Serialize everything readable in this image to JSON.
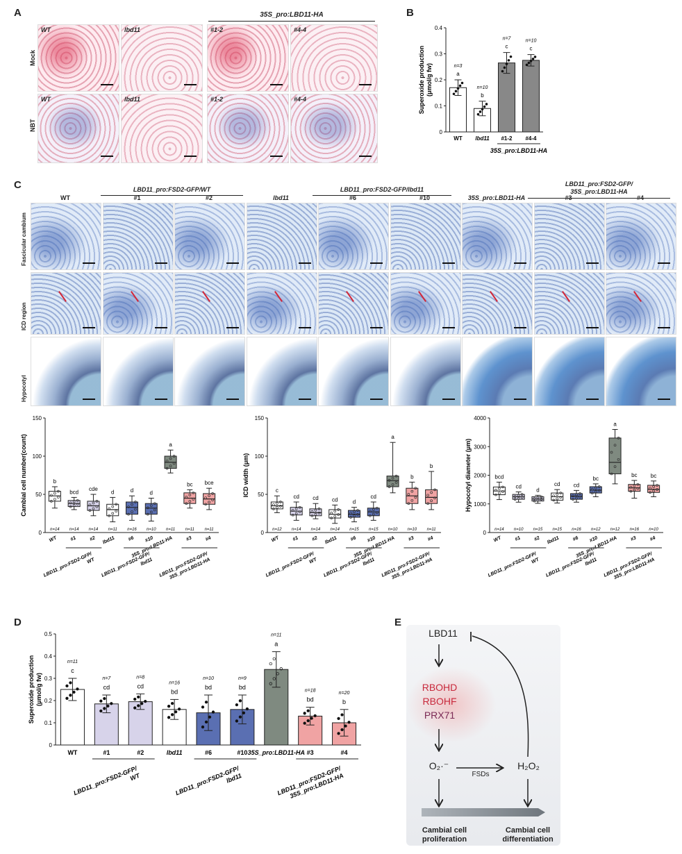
{
  "panel_letters": {
    "A": "A",
    "B": "B",
    "C": "C",
    "D": "D",
    "E": "E"
  },
  "panelA": {
    "group_header": "35S_pro:LBD11-HA",
    "row_labels": [
      "Mock",
      "NBT"
    ],
    "columns": [
      "WT",
      "lbd11",
      "#1-2",
      "#4-4"
    ]
  },
  "panelB": {
    "ylabel": "Superoxide production\n(μmol/g fw)",
    "group_label": "35S_pro:LBD11-HA"
  },
  "panelC": {
    "col_labels": [
      "WT",
      "#1",
      "#2",
      "lbd11",
      "#6",
      "#10",
      "35S_pro:LBD11-HA",
      "#3",
      "#4"
    ],
    "group_headers": [
      "LBD11_pro:FSD2-GFP/WT",
      "LBD11_pro:FSD2-GFP/lbd11",
      "LBD11_pro:FSD2-GFP/\n35S_pro:LBD11-HA"
    ],
    "row_labels": [
      "Fascicular cambium",
      "ICD region",
      "Hypocotyl"
    ]
  },
  "panelD": {
    "ylabel": "Superoxide production\n(μmol/g fw)"
  },
  "panelE": {
    "lbd11": "LBD11",
    "rbohd": "RBOHD",
    "rbohf": "RBOHF",
    "prx71": "PRX71",
    "o2": "O₂·⁻",
    "fsds": "FSDs",
    "h2o2": "H₂O₂",
    "left_outcome": "Cambial cell\nproliferation",
    "right_outcome": "Cambial cell\ndifferentiation",
    "colors": {
      "rboh": "#c8283b",
      "prx": "#7a2a55",
      "arrow": "#222222"
    }
  },
  "chart_data": [
    {
      "type": "bar",
      "panel": "B",
      "categories": [
        "WT",
        "lbd11",
        "#1-2",
        "#4-4"
      ],
      "values": [
        0.17,
        0.09,
        0.265,
        0.275
      ],
      "errors": [
        0.03,
        0.028,
        0.04,
        0.022
      ],
      "letters": [
        "a",
        "b",
        "c",
        "c"
      ],
      "n": [
        "n=3",
        "n=10",
        "n=7",
        "n=10"
      ],
      "colors": [
        "#ffffff",
        "#ffffff",
        "#888888",
        "#888888"
      ],
      "ylim": [
        0,
        0.4
      ],
      "yticks": [
        "0",
        "0.1",
        "0.2",
        "0.3",
        "0.4"
      ],
      "ylabel": "Superoxide production\n(μmol/g fw)"
    },
    {
      "type": "box",
      "panel": "C1",
      "categories": [
        "WT",
        "#1",
        "#2",
        "lbd11",
        "#6",
        "#10",
        "35S_pro:LBD11-HA",
        "#3",
        "#4"
      ],
      "medians": [
        48,
        38,
        35,
        30,
        33,
        32,
        92,
        45,
        44
      ],
      "q1": [
        41,
        34,
        29,
        22,
        24,
        24,
        84,
        38,
        37
      ],
      "q3": [
        54,
        42,
        41,
        37,
        40,
        38,
        100,
        52,
        51
      ],
      "min": [
        32,
        30,
        22,
        14,
        16,
        15,
        78,
        32,
        30
      ],
      "max": [
        60,
        46,
        50,
        46,
        48,
        45,
        108,
        56,
        58
      ],
      "letters": [
        "b",
        "bcd",
        "cde",
        "d",
        "d",
        "d",
        "a",
        "bc",
        "bce"
      ],
      "n": [
        "n=14",
        "n=14",
        "n=14",
        "n=11",
        "n=16",
        "n=10",
        "n=11",
        "n=11",
        "n=11"
      ],
      "colors": [
        "#ffffff",
        "#d7d3ea",
        "#d7d3ea",
        "#ffffff",
        "#5a6fb2",
        "#5a6fb2",
        "#7f8a80",
        "#f0a3a3",
        "#f0a3a3"
      ],
      "ylim": [
        0,
        150
      ],
      "yticks": [
        "0",
        "50",
        "100",
        "150"
      ],
      "ylabel": "Cambial cell number(count)"
    },
    {
      "type": "box",
      "panel": "C2",
      "categories": [
        "WT",
        "#1",
        "#2",
        "lbd11",
        "#6",
        "#10",
        "35S_pro:LBD11-HA",
        "#3",
        "#4"
      ],
      "medians": [
        35,
        28,
        26,
        24,
        24,
        27,
        68,
        48,
        46
      ],
      "q1": [
        31,
        23,
        22,
        19,
        20,
        22,
        60,
        38,
        38
      ],
      "q3": [
        40,
        33,
        31,
        30,
        29,
        32,
        74,
        58,
        56
      ],
      "min": [
        26,
        16,
        18,
        12,
        14,
        16,
        52,
        30,
        30
      ],
      "max": [
        48,
        40,
        38,
        36,
        33,
        40,
        118,
        66,
        80
      ],
      "letters": [
        "c",
        "cd",
        "cd",
        "cd",
        "d",
        "cd",
        "a",
        "b",
        "b"
      ],
      "n": [
        "n=12",
        "n=14",
        "n=14",
        "n=14",
        "n=15",
        "n=15",
        "n=10",
        "n=10",
        "n=11"
      ],
      "colors": [
        "#ffffff",
        "#d7d3ea",
        "#d7d3ea",
        "#ffffff",
        "#5a6fb2",
        "#5a6fb2",
        "#7f8a80",
        "#f0a3a3",
        "#f0a3a3"
      ],
      "ylim": [
        0,
        150
      ],
      "yticks": [
        "0",
        "50",
        "100",
        "150"
      ],
      "ylabel": "ICD width (μm)"
    },
    {
      "type": "box",
      "panel": "C3",
      "categories": [
        "WT",
        "#1",
        "#2",
        "lbd11",
        "#6",
        "#10",
        "35S_pro:LBD11-HA",
        "#3",
        "#4"
      ],
      "medians": [
        1450,
        1250,
        1170,
        1250,
        1270,
        1480,
        2450,
        1560,
        1510
      ],
      "q1": [
        1320,
        1160,
        1100,
        1130,
        1160,
        1380,
        2050,
        1440,
        1400
      ],
      "q3": [
        1590,
        1330,
        1250,
        1380,
        1360,
        1600,
        3300,
        1680,
        1650
      ],
      "min": [
        1150,
        1060,
        1020,
        1030,
        1060,
        1250,
        1700,
        1200,
        1250
      ],
      "max": [
        1760,
        1420,
        1300,
        1500,
        1470,
        1700,
        3600,
        1820,
        1800
      ],
      "letters": [
        "bcd",
        "cd",
        "d",
        "cd",
        "cd",
        "bc",
        "a",
        "bc",
        "bc"
      ],
      "n": [
        "n=14",
        "n=10",
        "n=15",
        "n=15",
        "n=16",
        "n=12",
        "n=12",
        "n=16",
        "n=10"
      ],
      "colors": [
        "#ffffff",
        "#d7d3ea",
        "#d7d3ea",
        "#ffffff",
        "#5a6fb2",
        "#5a6fb2",
        "#7f8a80",
        "#f0a3a3",
        "#f0a3a3"
      ],
      "ylim": [
        0,
        4000
      ],
      "yticks": [
        "0",
        "1000",
        "2000",
        "3000",
        "4000"
      ],
      "ylabel": "Hypocotyl diameter (μm)"
    },
    {
      "type": "bar",
      "panel": "D",
      "categories": [
        "WT",
        "#1",
        "#2",
        "lbd11",
        "#6",
        "#10",
        "35S_pro:LBD11-HA",
        "#3",
        "#4"
      ],
      "values": [
        0.25,
        0.185,
        0.195,
        0.16,
        0.145,
        0.16,
        0.34,
        0.13,
        0.1
      ],
      "errors": [
        0.05,
        0.04,
        0.035,
        0.045,
        0.08,
        0.065,
        0.08,
        0.04,
        0.06
      ],
      "letters": [
        "c",
        "cd",
        "cd",
        "bd",
        "bd",
        "bd",
        "a",
        "bd",
        "b"
      ],
      "n": [
        "n=11",
        "n=7",
        "n=8",
        "n=16",
        "n=10",
        "n=9",
        "n=11",
        "n=18",
        "n=20"
      ],
      "colors": [
        "#ffffff",
        "#d7d3ea",
        "#d7d3ea",
        "#ffffff",
        "#5a6fb2",
        "#5a6fb2",
        "#7f8a80",
        "#f0a3a3",
        "#f0a3a3"
      ],
      "ylim": [
        0,
        0.5
      ],
      "yticks": [
        "0",
        "0.1",
        "0.2",
        "0.3",
        "0.4",
        "0.5"
      ],
      "xticklabels": [
        "WT",
        "#1",
        "#2",
        "lbd11",
        "#6",
        "#10",
        "35S_pro:LBD11-HA",
        "#3",
        "#4"
      ],
      "group_labels": [
        "LBD11_pro:FSD2-GFP/\nWT",
        "LBD11_pro:FSD2-GFP/\nlbd11",
        "LBD11_pro:FSD2-GFP/\n35S_pro:LBD11-HA"
      ],
      "ylabel": "Superoxide production\n(μmol/g fw)"
    }
  ]
}
